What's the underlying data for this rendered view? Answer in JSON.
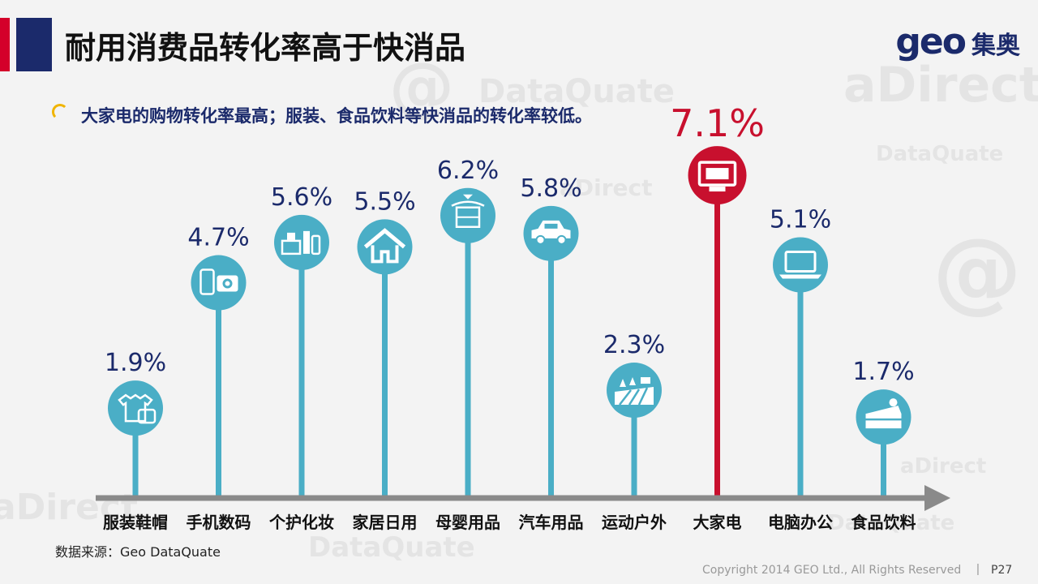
{
  "header": {
    "title": "耐用消费品转化率高于快消品",
    "logo_text": "geo",
    "logo_cn": "集奥"
  },
  "subtitle": "大家电的购物转化率最高；服装、食品饮料等快消品的转化率较低。",
  "chart_data": {
    "type": "bar",
    "categories": [
      "服装鞋帽",
      "手机数码",
      "个护化妆",
      "家居日用",
      "母婴用品",
      "汽车用品",
      "运动户外",
      "大家电",
      "电脑办公",
      "食品饮料"
    ],
    "values": [
      1.9,
      4.7,
      5.6,
      5.5,
      6.2,
      5.8,
      2.3,
      7.1,
      5.1,
      1.7
    ],
    "value_labels": [
      "1.9%",
      "4.7%",
      "5.6%",
      "5.5%",
      "6.2%",
      "5.8%",
      "2.3%",
      "7.1%",
      "5.1%",
      "1.7%"
    ],
    "unit": "%",
    "highlight_index": 7,
    "icons": [
      "clothing-icon",
      "phone-camera-icon",
      "cosmetics-icon",
      "house-icon",
      "crib-icon",
      "car-icon",
      "outdoor-field-icon",
      "monitor-icon",
      "laptop-icon",
      "food-cake-icon"
    ],
    "colors": {
      "normal": "#4aaec6",
      "highlight": "#c8102e",
      "label": "#1b2a6b",
      "axis": "#8a8a8a"
    },
    "ylim": [
      0,
      7.5
    ]
  },
  "footer": {
    "source": "数据来源：Geo DataQuate",
    "copyright": "Copyright 2014 GEO Ltd., All Rights Reserved",
    "separator": "|",
    "page": "P27"
  },
  "watermark": [
    "aDirect",
    "DataQuate",
    "@"
  ]
}
